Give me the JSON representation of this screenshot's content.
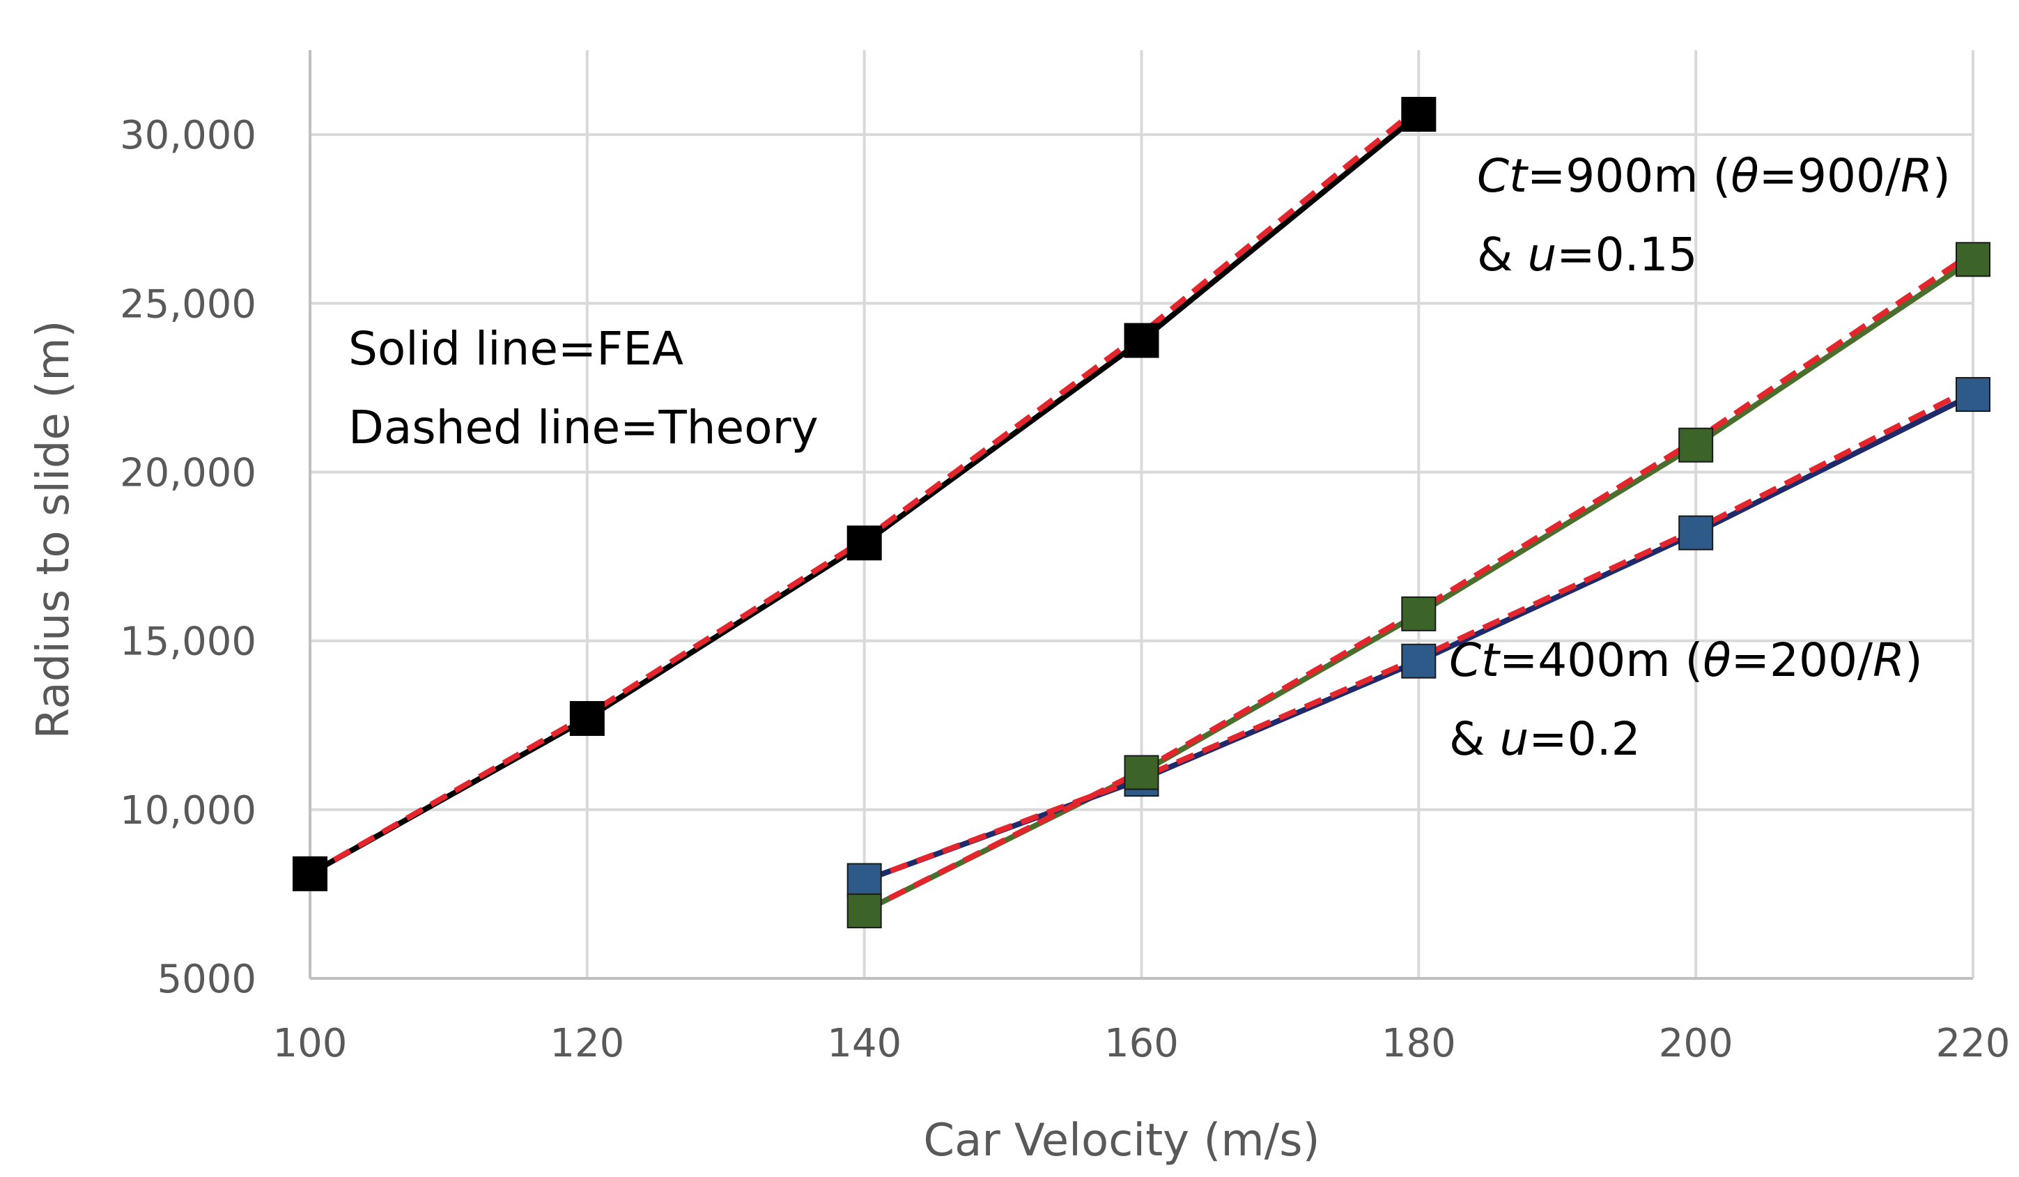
{
  "chart_data": {
    "type": "line",
    "title": "",
    "xlabel": "Car Velocity (m/s)",
    "ylabel": "Radius to slide (m)",
    "xlim": [
      100,
      220
    ],
    "ylim": [
      5000,
      32500
    ],
    "x_ticks": [
      100,
      120,
      140,
      160,
      180,
      200,
      220
    ],
    "x_tick_labels": [
      "100",
      "120",
      "140",
      "160",
      "180",
      "200",
      "220"
    ],
    "y_ticks": [
      5000,
      10000,
      15000,
      20000,
      25000,
      30000
    ],
    "y_tick_labels": [
      "5000",
      "10,000",
      "15,000",
      "20,000",
      "25,000",
      "30,000"
    ],
    "grid": "vertical-and-horizontal",
    "series": [
      {
        "name": "FEA (black)",
        "style": "solid",
        "color": "#000000",
        "marker": "square",
        "x": [
          100,
          120,
          140,
          160,
          180
        ],
        "y": [
          8100,
          12700,
          17900,
          23900,
          30600
        ]
      },
      {
        "name": "Theory (black)",
        "style": "dashed",
        "color": "#e3262e",
        "marker": "none",
        "x": [
          100,
          120,
          140,
          160,
          180
        ],
        "y": [
          8100,
          12800,
          18000,
          24100,
          30800
        ]
      },
      {
        "name": "FEA Ct=400m u=0.2",
        "style": "solid",
        "color": "#1f2a6b",
        "marker": "square",
        "marker_color": "#2e5a8a",
        "x": [
          140,
          160,
          180,
          200,
          220
        ],
        "y": [
          7900,
          10900,
          14400,
          18200,
          22300
        ]
      },
      {
        "name": "Theory Ct=400m u=0.2",
        "style": "dashed",
        "color": "#e3262e",
        "marker": "none",
        "x": [
          140,
          160,
          180,
          200,
          220
        ],
        "y": [
          7900,
          10950,
          14500,
          18300,
          22500
        ]
      },
      {
        "name": "FEA Ct=900m u=0.15",
        "style": "solid",
        "color": "#4a6e2c",
        "marker": "square",
        "marker_color": "#3d6428",
        "x": [
          140,
          160,
          180,
          200,
          220
        ],
        "y": [
          7000,
          11100,
          15800,
          20800,
          26300
        ]
      },
      {
        "name": "Theory Ct=900m u=0.15",
        "style": "dashed",
        "color": "#e3262e",
        "marker": "none",
        "x": [
          140,
          160,
          180,
          200,
          220
        ],
        "y": [
          7000,
          11150,
          15900,
          20950,
          26500
        ]
      }
    ],
    "annotations": {
      "legend_line1": "Solid line=FEA",
      "legend_line2": "Dashed line=Theory",
      "ct900_a": "Ct",
      "ct900_b": "=900m (",
      "ct900_c": "θ",
      "ct900_d": "=900/",
      "ct900_e": "R",
      "ct900_f": ")",
      "ct900_g": "& ",
      "ct900_h": "u",
      "ct900_i": "=0.15",
      "ct400_a": "Ct",
      "ct400_b": "=400m (",
      "ct400_c": "θ",
      "ct400_d": "=200/",
      "ct400_e": "R",
      "ct400_f": ")",
      "ct400_g": "& ",
      "ct400_h": "u",
      "ct400_i": "=0.2"
    }
  }
}
